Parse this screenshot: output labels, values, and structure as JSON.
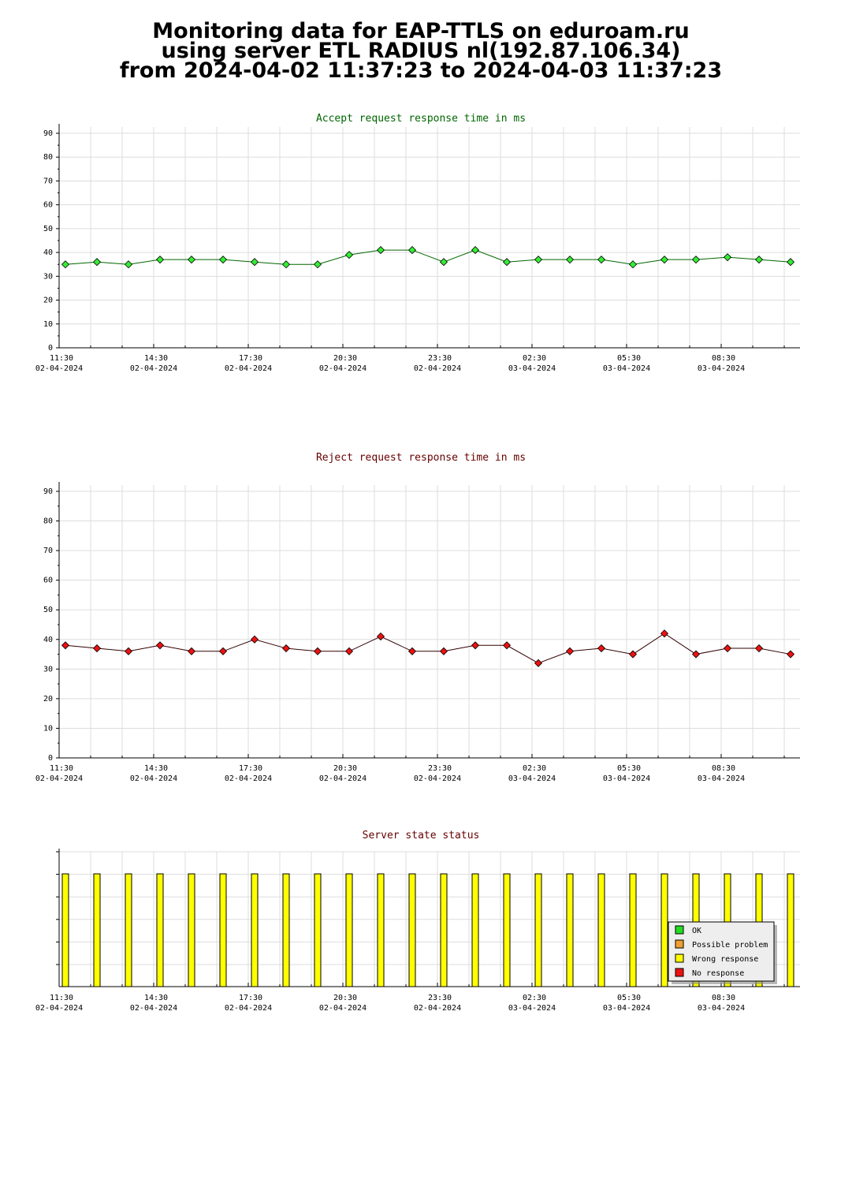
{
  "header": {
    "line1": "Monitoring data for EAP-TTLS on eduroam.ru",
    "line2": "using server ETL RADIUS nl(192.87.106.34)",
    "line3": "from 2024-04-02 11:37:23 to 2024-04-03 11:37:23"
  },
  "colors": {
    "accept_title": "#006600",
    "reject_title": "#660000",
    "status_title": "#660000",
    "accept_line": "#006600",
    "accept_marker": "#33ee33",
    "reject_line": "#330000",
    "reject_marker": "#ee1111",
    "status_bar": "#ffff00"
  },
  "x_ticks": [
    {
      "time": "11:30",
      "date": "02-04-2024"
    },
    {
      "time": "14:30",
      "date": "02-04-2024"
    },
    {
      "time": "17:30",
      "date": "02-04-2024"
    },
    {
      "time": "20:30",
      "date": "02-04-2024"
    },
    {
      "time": "23:30",
      "date": "02-04-2024"
    },
    {
      "time": "02:30",
      "date": "03-04-2024"
    },
    {
      "time": "05:30",
      "date": "03-04-2024"
    },
    {
      "time": "08:30",
      "date": "03-04-2024"
    }
  ],
  "chart_data": [
    {
      "type": "line",
      "title": "Accept request response time in ms",
      "ylim": [
        0,
        90
      ],
      "yticks": [
        0,
        10,
        20,
        30,
        40,
        50,
        60,
        70,
        80,
        90
      ],
      "grid": true,
      "values": [
        35,
        36,
        35,
        37,
        37,
        37,
        36,
        35,
        35,
        39,
        41,
        41,
        36,
        41,
        36,
        37,
        37,
        37,
        35,
        37,
        37,
        38,
        37,
        36
      ]
    },
    {
      "type": "line",
      "title": "Reject request response time in ms",
      "ylim": [
        0,
        90
      ],
      "yticks": [
        0,
        10,
        20,
        30,
        40,
        50,
        60,
        70,
        80,
        90
      ],
      "grid": true,
      "values": [
        38,
        37,
        36,
        38,
        36,
        36,
        40,
        37,
        36,
        36,
        41,
        36,
        36,
        38,
        38,
        32,
        36,
        37,
        35,
        42,
        35,
        37,
        37,
        35
      ]
    },
    {
      "type": "bar",
      "title": "Server state status",
      "grid": true,
      "legend_position": "bottom-right",
      "legend": [
        {
          "label": "OK",
          "color": "#22dd22"
        },
        {
          "label": "Possible problem",
          "color": "#f0a030"
        },
        {
          "label": "Wrong response",
          "color": "#ffff00"
        },
        {
          "label": "No response",
          "color": "#ee1111"
        }
      ],
      "values": [
        "Wrong response",
        "Wrong response",
        "Wrong response",
        "Wrong response",
        "Wrong response",
        "Wrong response",
        "Wrong response",
        "Wrong response",
        "Wrong response",
        "Wrong response",
        "Wrong response",
        "Wrong response",
        "Wrong response",
        "Wrong response",
        "Wrong response",
        "Wrong response",
        "Wrong response",
        "Wrong response",
        "Wrong response",
        "Wrong response",
        "Wrong response",
        "Wrong response",
        "Wrong response",
        "Wrong response"
      ]
    }
  ]
}
